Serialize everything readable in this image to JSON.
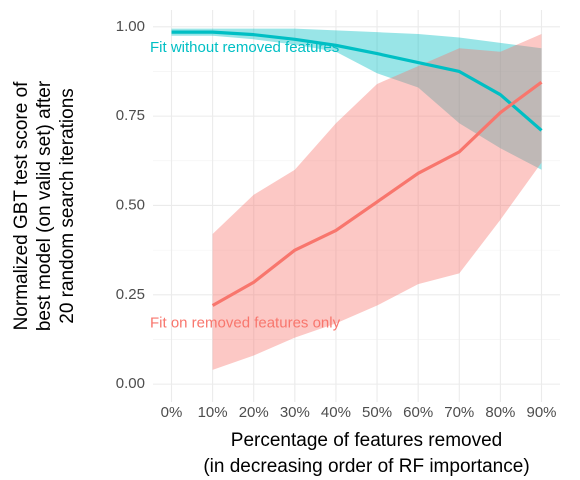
{
  "chart_data": {
    "type": "line-ribbon",
    "x_label": [
      "Percentage of features removed",
      "(in decreasing order of RF importance)"
    ],
    "y_label": [
      "Normalized GBT test score of",
      "best model (on valid set) after",
      "20 random search iterations"
    ],
    "x": [
      0,
      10,
      20,
      30,
      40,
      50,
      60,
      70,
      80,
      90
    ],
    "xlim": [
      -4.5,
      94.5
    ],
    "xticks": [
      {
        "value": 0,
        "label": "0%"
      },
      {
        "value": 10,
        "label": "10%"
      },
      {
        "value": 20,
        "label": "20%"
      },
      {
        "value": 30,
        "label": "30%"
      },
      {
        "value": 40,
        "label": "40%"
      },
      {
        "value": 50,
        "label": "50%"
      },
      {
        "value": 60,
        "label": "60%"
      },
      {
        "value": 70,
        "label": "70%"
      },
      {
        "value": 80,
        "label": "80%"
      },
      {
        "value": 90,
        "label": "90%"
      }
    ],
    "ylim": [
      -0.05,
      1.047
    ],
    "yticks": [
      {
        "value": 0,
        "label": "0.00"
      },
      {
        "value": 0.25,
        "label": "0.25"
      },
      {
        "value": 0.5,
        "label": "0.50"
      },
      {
        "value": 0.75,
        "label": "0.75"
      },
      {
        "value": 1,
        "label": "1.00"
      }
    ],
    "grid": true,
    "series": [
      {
        "name": "Fit without removed features",
        "color": "#00BFC4",
        "values": [
          0.985,
          0.985,
          0.978,
          0.965,
          0.948,
          0.925,
          0.9,
          0.875,
          0.81,
          0.71
        ],
        "upper": [
          0.995,
          0.995,
          0.995,
          0.995,
          0.99,
          0.985,
          0.98,
          0.97,
          0.955,
          0.94
        ],
        "lower": [
          0.975,
          0.975,
          0.965,
          0.95,
          0.93,
          0.87,
          0.83,
          0.73,
          0.66,
          0.6
        ]
      },
      {
        "name": "Fit on removed features only",
        "color": "#F8766D",
        "values": [
          null,
          0.22,
          0.285,
          0.375,
          0.43,
          0.51,
          0.59,
          0.65,
          0.76,
          0.845
        ],
        "upper": [
          null,
          0.42,
          0.53,
          0.6,
          0.73,
          0.84,
          0.89,
          0.94,
          0.93,
          0.98
        ],
        "lower": [
          null,
          0.04,
          0.08,
          0.13,
          0.17,
          0.22,
          0.28,
          0.31,
          0.46,
          0.62
        ]
      }
    ]
  }
}
